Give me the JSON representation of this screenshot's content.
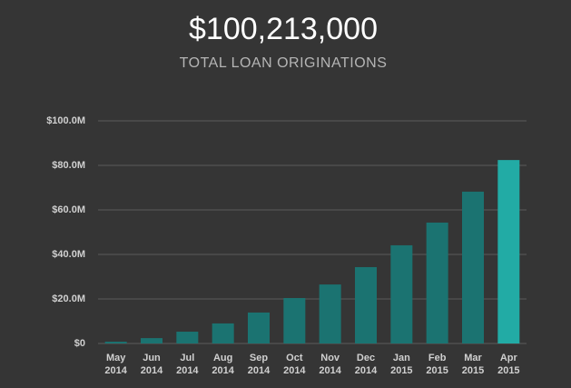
{
  "chart_data": {
    "type": "bar",
    "title": "$100,213,000",
    "subtitle": "TOTAL LOAN ORIGINATIONS",
    "categories": [
      "May 2014",
      "Jun 2014",
      "Jul 2014",
      "Aug 2014",
      "Sep 2014",
      "Oct 2014",
      "Nov 2014",
      "Dec 2014",
      "Jan 2015",
      "Feb 2015",
      "Mar 2015",
      "Apr 2015"
    ],
    "values": [
      800000,
      2400000,
      5300000,
      9000000,
      13900000,
      20400000,
      26500000,
      34300000,
      44100000,
      54300000,
      68200000,
      82400000
    ],
    "colors": [
      "#1b7371",
      "#1b7371",
      "#1b7371",
      "#1b7371",
      "#1b7371",
      "#1b7371",
      "#1b7371",
      "#1b7371",
      "#1b7371",
      "#1b7371",
      "#1b7371",
      "#22aba5"
    ],
    "ylim": [
      0,
      100000000
    ],
    "yticks": [
      {
        "value": 0,
        "label": "$0"
      },
      {
        "value": 20000000,
        "label": "$20.0M"
      },
      {
        "value": 40000000,
        "label": "$40.0M"
      },
      {
        "value": 60000000,
        "label": "$60.0M"
      },
      {
        "value": 80000000,
        "label": "$80.0M"
      },
      {
        "value": 100000000,
        "label": "$100.0M"
      }
    ],
    "grid": true
  }
}
